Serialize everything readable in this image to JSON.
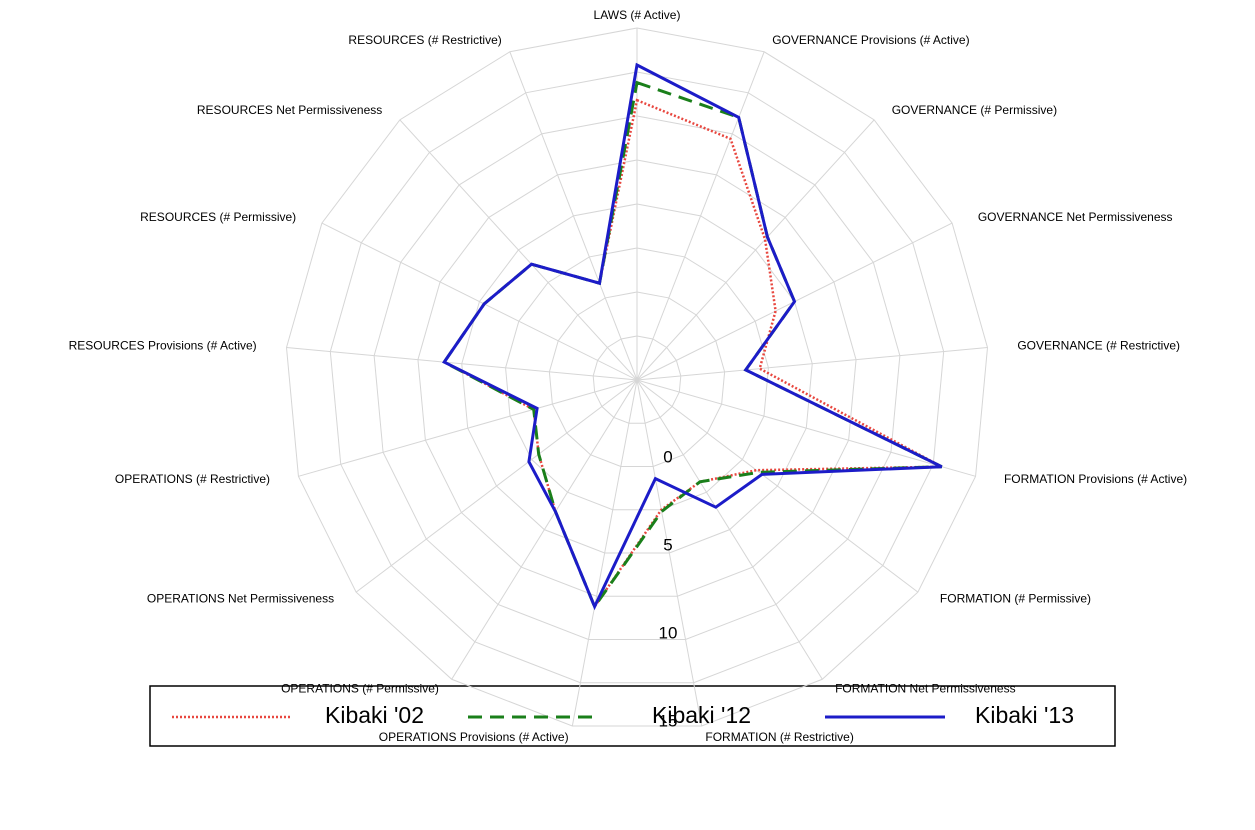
{
  "chart_data": {
    "type": "radar",
    "categories": [
      "LAWS (# Active)",
      "GOVERNANCE Provisions (# Active)",
      "GOVERNANCE (# Permissive)",
      "GOVERNANCE Net Permissiveness",
      "GOVERNANCE (# Restrictive)",
      "FORMATION Provisions (# Active)",
      "FORMATION (# Permissive)",
      "FORMATION Net Permissiveness",
      "FORMATION (# Restrictive)",
      "OPERATIONS Provisions (# Active)",
      "OPERATIONS (# Permissive)",
      "OPERATIONS Net Permissiveness",
      "OPERATIONS (# Restrictive)",
      "RESOURCES Provisions (# Active)",
      "RESOURCES (# Permissive)",
      "RESOURCES Net Permissiveness",
      "RESOURCES (# Restrictive)"
    ],
    "series": [
      {
        "name": "Kibaki '02",
        "color": "#e8473f",
        "dash": "dotted",
        "values": [
          10.9,
          9.7,
          5.8,
          3.8,
          2.0,
          13.0,
          3.5,
          1.8,
          2.5,
          8.1,
          3.8,
          2.0,
          1.1,
          6.0,
          4.7,
          3.9,
          0.9
        ]
      },
      {
        "name": "Kibaki '12",
        "color": "#1a7f1a",
        "dash": "dashed",
        "values": [
          11.9,
          11.0,
          6.0,
          5.0,
          1.2,
          13.0,
          3.7,
          1.8,
          2.6,
          8.1,
          3.8,
          2.0,
          1.1,
          6.0,
          4.7,
          3.9,
          0.9
        ]
      },
      {
        "name": "Kibaki '13",
        "color": "#1c1cc8",
        "dash": "solid",
        "values": [
          12.9,
          11.0,
          6.0,
          5.0,
          1.2,
          13.0,
          3.9,
          3.5,
          0.7,
          8.1,
          3.8,
          2.7,
          0.9,
          6.0,
          4.7,
          3.9,
          0.9
        ]
      }
    ],
    "rlim": [
      -5,
      15
    ],
    "rticks": [
      0,
      5,
      10,
      15
    ],
    "minor_rticks": [
      -2.5,
      2.5,
      7.5,
      12.5
    ],
    "grid": true,
    "legend": "bottom"
  }
}
